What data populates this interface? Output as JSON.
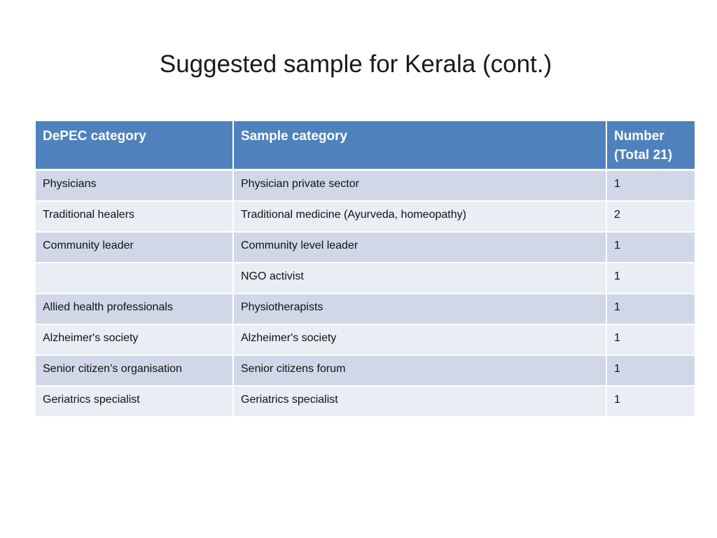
{
  "slide": {
    "title": "Suggested sample for Kerala (cont.)"
  },
  "table": {
    "headers": {
      "depec": "DePEC category",
      "sample": "Sample category",
      "number_line1": "Number",
      "number_line2": "(Total 21)"
    },
    "rows": [
      {
        "depec": "Physicians",
        "sample": "Physician private sector",
        "number": "1"
      },
      {
        "depec": "Traditional healers",
        "sample": "Traditional medicine (Ayurveda, homeopathy)",
        "number": "2"
      },
      {
        "depec": "Community leader",
        "sample": "Community level leader",
        "number": "1"
      },
      {
        "depec": "",
        "sample": "NGO activist",
        "number": "1"
      },
      {
        "depec": "Allied health professionals",
        "sample": "Physiotherapists",
        "number": "1"
      },
      {
        "depec": "Alzheimer's society",
        "sample": "Alzheimer's society",
        "number": "1"
      },
      {
        "depec": "Senior citizen’s organisation",
        "sample": "Senior citizens forum",
        "number": "1"
      },
      {
        "depec": "Geriatrics specialist",
        "sample": "Geriatrics specialist",
        "number": "1"
      }
    ]
  },
  "colors": {
    "header_bg": "#4f81bd",
    "row_dark": "#d0d8e8",
    "row_light": "#e9edf4"
  }
}
